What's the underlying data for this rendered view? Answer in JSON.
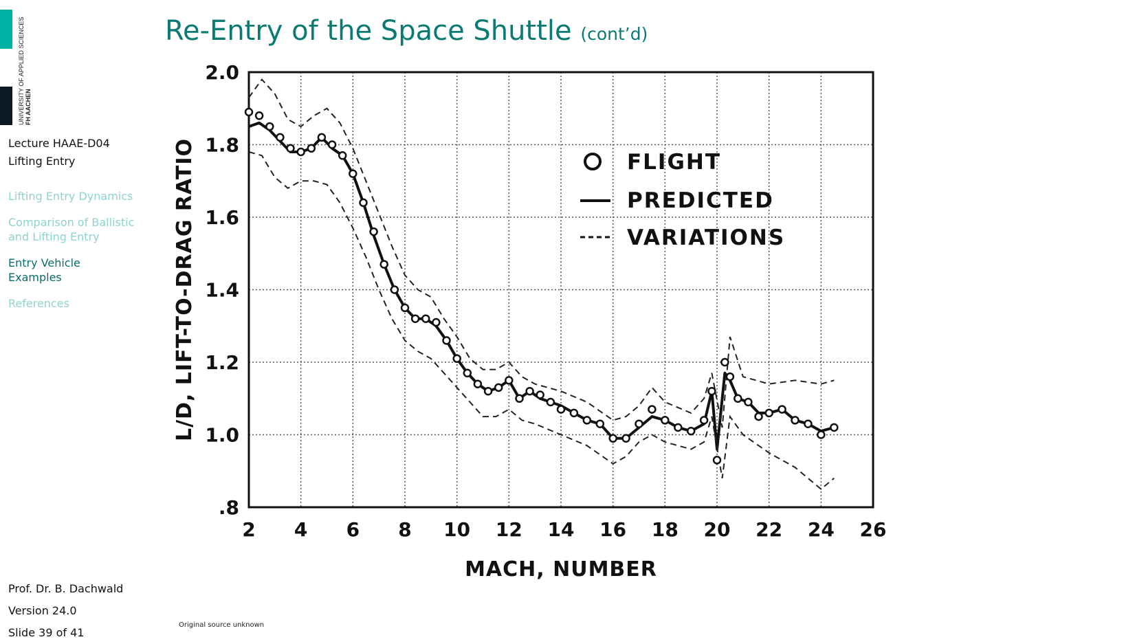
{
  "logo": {
    "line1": "UNIVERSITY OF APPLIED SCIENCES",
    "line2": "FH AACHEN"
  },
  "sidebar": {
    "lecture_code": "Lecture HAAE-D04",
    "lecture_title": "Lifting Entry",
    "nav": [
      {
        "label": "Lifting Entry Dynamics",
        "active": false
      },
      {
        "label": "Comparison of Ballistic and Lifting Entry",
        "active": false
      },
      {
        "label": "Entry Vehicle Examples",
        "active": true
      },
      {
        "label": "References",
        "active": false
      }
    ]
  },
  "footer": {
    "author": "Prof. Dr. B. Dachwald",
    "version": "Version 24.0",
    "slide": "Slide 39 of 41"
  },
  "slide": {
    "title": "Re-Entry of the Space Shuttle",
    "title_suffix": "(cont’d)",
    "source_note": "Original source unknown"
  },
  "chart_data": {
    "type": "line",
    "xlabel": "MACH, NUMBER",
    "ylabel": "L/D, LIFT-TO-DRAG RATIO",
    "xlim": [
      2,
      26
    ],
    "ylim": [
      0.8,
      2.0
    ],
    "x_ticks": [
      "2",
      "4",
      "6",
      "8",
      "10",
      "12",
      "14",
      "16",
      "18",
      "20",
      "22",
      "24",
      "26"
    ],
    "y_ticks": [
      ".8",
      "1.0",
      "1.2",
      "1.4",
      "1.6",
      "1.8",
      "2.0"
    ],
    "grid": true,
    "legend_position": "top-right",
    "legend": [
      {
        "symbol": "O",
        "label": "FLIGHT"
      },
      {
        "symbol": "—",
        "label": "PREDICTED"
      },
      {
        "symbol": "----",
        "label": "VARIATIONS"
      }
    ],
    "series": [
      {
        "style": "solid",
        "x": [
          2.0,
          2.4,
          2.8,
          3.2,
          3.6,
          4.0,
          4.4,
          4.8,
          5.2,
          5.6,
          6.0,
          6.4,
          6.8,
          7.2,
          7.6,
          8.0,
          8.4,
          8.8,
          9.2,
          9.6,
          10.0,
          10.4,
          10.8,
          11.2,
          11.6,
          12.0,
          12.4,
          12.8,
          13.2,
          13.6,
          14.0,
          14.5,
          15.0,
          15.5,
          16.0,
          16.5,
          17.0,
          17.5,
          18.0,
          18.5,
          19.0,
          19.5,
          19.8,
          20.0,
          20.3,
          20.5,
          20.8,
          21.2,
          21.6,
          22.0,
          22.5,
          23.0,
          23.5,
          24.0,
          24.5
        ],
        "y": [
          1.85,
          1.86,
          1.84,
          1.81,
          1.78,
          1.78,
          1.79,
          1.82,
          1.79,
          1.77,
          1.72,
          1.64,
          1.55,
          1.47,
          1.4,
          1.35,
          1.32,
          1.32,
          1.3,
          1.26,
          1.21,
          1.17,
          1.14,
          1.12,
          1.13,
          1.15,
          1.1,
          1.12,
          1.1,
          1.09,
          1.08,
          1.06,
          1.04,
          1.03,
          0.99,
          0.99,
          1.02,
          1.05,
          1.04,
          1.02,
          1.01,
          1.03,
          1.12,
          0.96,
          1.17,
          1.15,
          1.1,
          1.09,
          1.06,
          1.06,
          1.07,
          1.04,
          1.03,
          1.01,
          1.02
        ]
      },
      {
        "style": "marker",
        "x": [
          2.0,
          2.4,
          2.8,
          3.2,
          3.6,
          4.0,
          4.4,
          4.8,
          5.2,
          5.6,
          6.0,
          6.4,
          6.8,
          7.2,
          7.6,
          8.0,
          8.4,
          8.8,
          9.2,
          9.6,
          10.0,
          10.4,
          10.8,
          11.2,
          11.6,
          12.0,
          12.4,
          12.8,
          13.2,
          13.6,
          14.0,
          14.5,
          15.0,
          15.5,
          16.0,
          16.5,
          17.0,
          17.5,
          18.0,
          18.5,
          19.0,
          19.5,
          19.8,
          20.0,
          20.3,
          20.5,
          20.8,
          21.2,
          21.6,
          22.0,
          22.5,
          23.0,
          23.5,
          24.0,
          24.5
        ],
        "y": [
          1.89,
          1.88,
          1.85,
          1.82,
          1.79,
          1.78,
          1.79,
          1.82,
          1.8,
          1.77,
          1.72,
          1.64,
          1.56,
          1.47,
          1.4,
          1.35,
          1.32,
          1.32,
          1.31,
          1.26,
          1.21,
          1.17,
          1.14,
          1.12,
          1.13,
          1.15,
          1.1,
          1.12,
          1.11,
          1.09,
          1.07,
          1.06,
          1.04,
          1.03,
          0.99,
          0.99,
          1.03,
          1.07,
          1.04,
          1.02,
          1.01,
          1.04,
          1.12,
          0.93,
          1.2,
          1.16,
          1.1,
          1.09,
          1.05,
          1.06,
          1.07,
          1.04,
          1.03,
          1.0,
          1.02
        ]
      },
      {
        "style": "dashed",
        "x": [
          2.0,
          2.5,
          3.0,
          3.5,
          4.0,
          4.5,
          5.0,
          5.5,
          6.0,
          6.5,
          7.0,
          7.5,
          8.0,
          8.5,
          9.0,
          9.5,
          10.0,
          10.5,
          11.0,
          11.5,
          12.0,
          12.5,
          13.0,
          14.0,
          15.0,
          16.0,
          16.5,
          17.0,
          17.5,
          18.0,
          19.0,
          19.5,
          19.8,
          20.2,
          20.5,
          21.0,
          22.0,
          23.0,
          24.0,
          24.5
        ],
        "y": [
          1.93,
          1.98,
          1.94,
          1.87,
          1.85,
          1.88,
          1.9,
          1.86,
          1.79,
          1.7,
          1.61,
          1.52,
          1.44,
          1.4,
          1.38,
          1.32,
          1.27,
          1.21,
          1.18,
          1.18,
          1.2,
          1.16,
          1.14,
          1.12,
          1.09,
          1.04,
          1.05,
          1.08,
          1.13,
          1.09,
          1.06,
          1.1,
          1.17,
          1.02,
          1.27,
          1.16,
          1.14,
          1.15,
          1.14,
          1.15
        ]
      },
      {
        "style": "dashed",
        "x": [
          2.0,
          2.5,
          3.0,
          3.5,
          4.0,
          4.5,
          5.0,
          5.5,
          6.0,
          6.5,
          7.0,
          7.5,
          8.0,
          8.5,
          9.0,
          9.5,
          10.0,
          10.5,
          11.0,
          11.5,
          12.0,
          12.5,
          13.0,
          14.0,
          15.0,
          16.0,
          16.5,
          17.0,
          17.5,
          18.0,
          19.0,
          19.5,
          19.8,
          20.2,
          20.5,
          21.0,
          22.0,
          23.0,
          24.0,
          24.5
        ],
        "y": [
          1.78,
          1.77,
          1.71,
          1.68,
          1.7,
          1.7,
          1.69,
          1.64,
          1.57,
          1.49,
          1.4,
          1.32,
          1.26,
          1.23,
          1.21,
          1.17,
          1.13,
          1.09,
          1.05,
          1.05,
          1.07,
          1.04,
          1.03,
          1.0,
          0.97,
          0.92,
          0.94,
          0.98,
          1.0,
          0.98,
          0.96,
          0.98,
          1.05,
          0.88,
          1.05,
          1.0,
          0.95,
          0.91,
          0.85,
          0.88
        ]
      }
    ]
  }
}
